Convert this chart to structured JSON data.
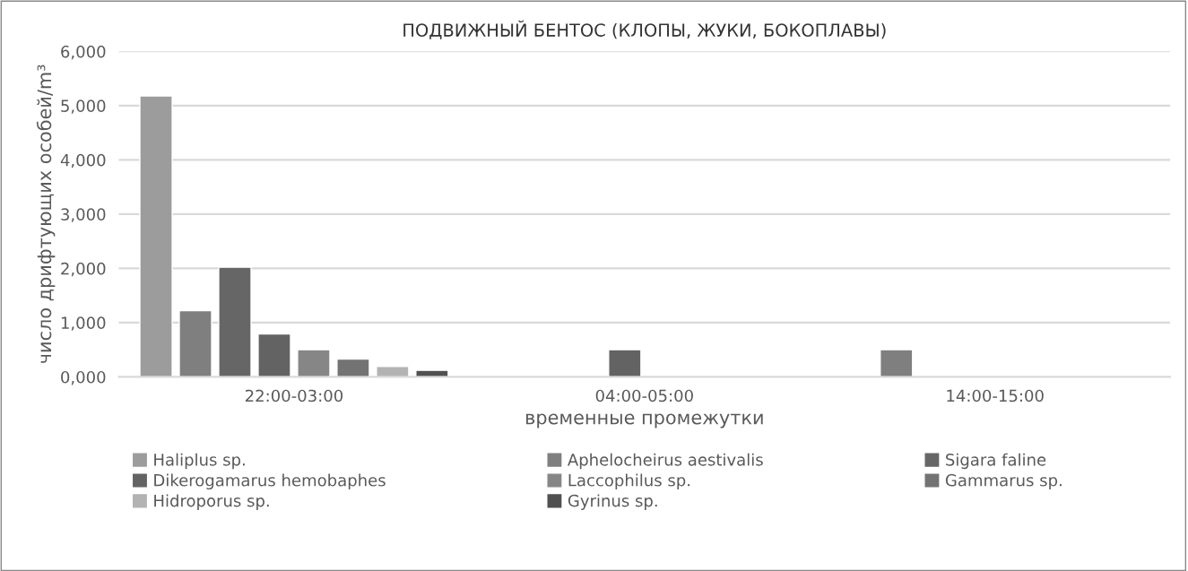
{
  "chart_data": {
    "type": "bar",
    "title": "ПОДВИЖНЫЙ БЕНТОС (КЛОПЫ, ЖУКИ, БОКОПЛАВЫ)",
    "xlabel": "временные промежутки",
    "ylabel": "число дрифтующих особей/m³",
    "categories": [
      "22:00-03:00",
      "04:00-05:00",
      "14:00-15:00"
    ],
    "series": [
      {
        "name": "Haliplus sp.",
        "color": "#9c9c9c",
        "values": [
          5180,
          null,
          null
        ]
      },
      {
        "name": "Aphelocheirus aestivalis",
        "color": "#7f7f7f",
        "values": [
          1220,
          null,
          500
        ]
      },
      {
        "name": "Sigara faline",
        "color": "#666666",
        "values": [
          2020,
          null,
          null
        ]
      },
      {
        "name": "Dikerogamarus hemobaphes",
        "color": "#636363",
        "values": [
          790,
          500,
          null
        ]
      },
      {
        "name": "Laccophilus sp.",
        "color": "#868686",
        "values": [
          500,
          null,
          null
        ]
      },
      {
        "name": "Gammarus sp.",
        "color": "#737373",
        "values": [
          330,
          null,
          null
        ]
      },
      {
        "name": "Hidroporus sp.",
        "color": "#b3b3b3",
        "values": [
          190,
          null,
          null
        ]
      },
      {
        "name": "Gyrinus sp.",
        "color": "#505050",
        "values": [
          120,
          null,
          null
        ]
      }
    ],
    "ylim": [
      0,
      6000
    ],
    "yticks": [
      {
        "value": 0,
        "label": "0,000"
      },
      {
        "value": 1000,
        "label": "1,000"
      },
      {
        "value": 2000,
        "label": "2,000"
      },
      {
        "value": 3000,
        "label": "3,000"
      },
      {
        "value": 4000,
        "label": "4,000"
      },
      {
        "value": 5000,
        "label": "5,000"
      },
      {
        "value": 6000,
        "label": "6,000"
      }
    ],
    "grid": "y",
    "legend": "bottom"
  }
}
